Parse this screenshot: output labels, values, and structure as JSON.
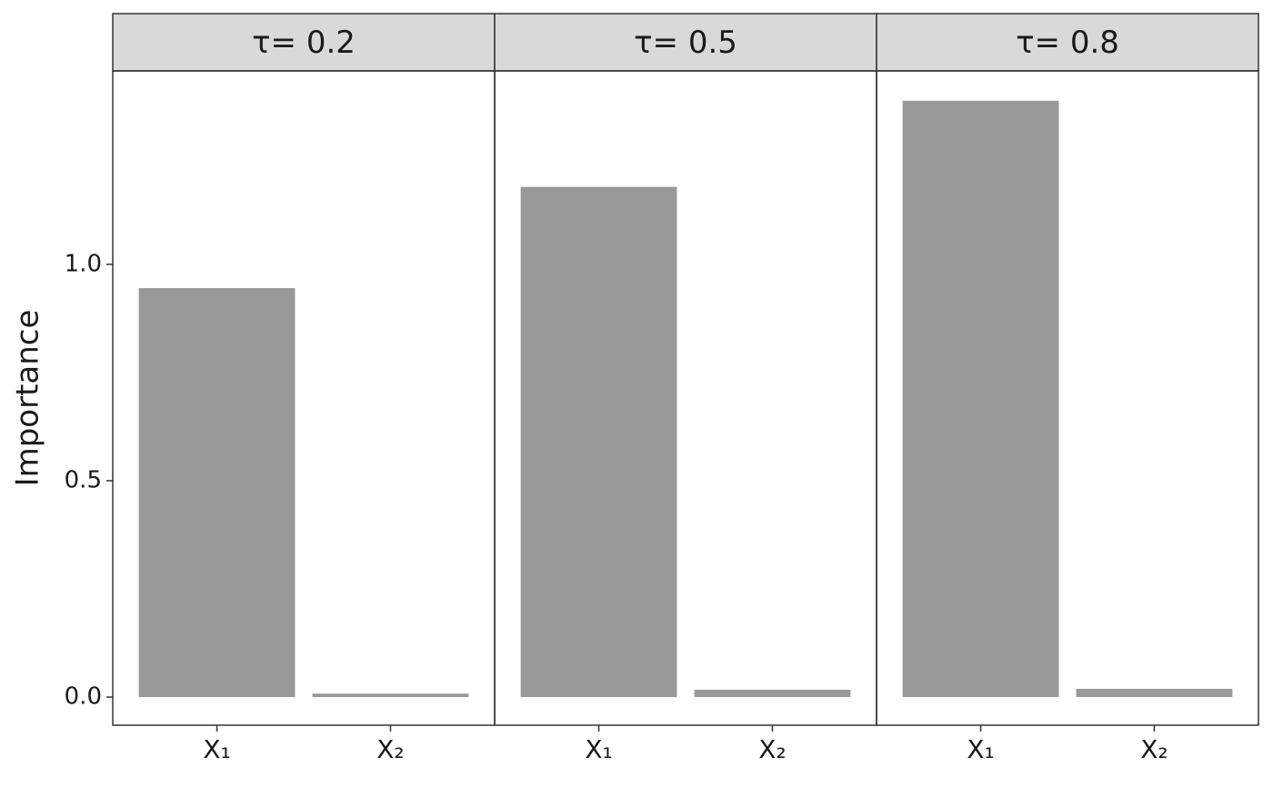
{
  "chart_data": [
    {
      "type": "bar",
      "title": "τ= 0.2",
      "ylabel": "Importance",
      "categories": [
        "X₁",
        "X₂"
      ],
      "values": [
        0.945,
        0.008
      ],
      "color": "#999999",
      "ylim": [
        -0.065,
        1.447
      ],
      "yticks": [
        {
          "value": 0,
          "label": "0.0"
        },
        {
          "value": 0.5,
          "label": "0.5"
        },
        {
          "value": 1,
          "label": "1.0"
        }
      ]
    },
    {
      "type": "bar",
      "title": "τ= 0.5",
      "categories": [
        "X₁",
        "X₂"
      ],
      "values": [
        1.179,
        0.017
      ],
      "color": "#999999",
      "ylim": [
        -0.065,
        1.447
      ]
    },
    {
      "type": "bar",
      "title": "τ= 0.8",
      "categories": [
        "X₁",
        "X₂"
      ],
      "values": [
        1.378,
        0.019
      ],
      "color": "#999999",
      "ylim": [
        -0.065,
        1.447
      ]
    }
  ]
}
